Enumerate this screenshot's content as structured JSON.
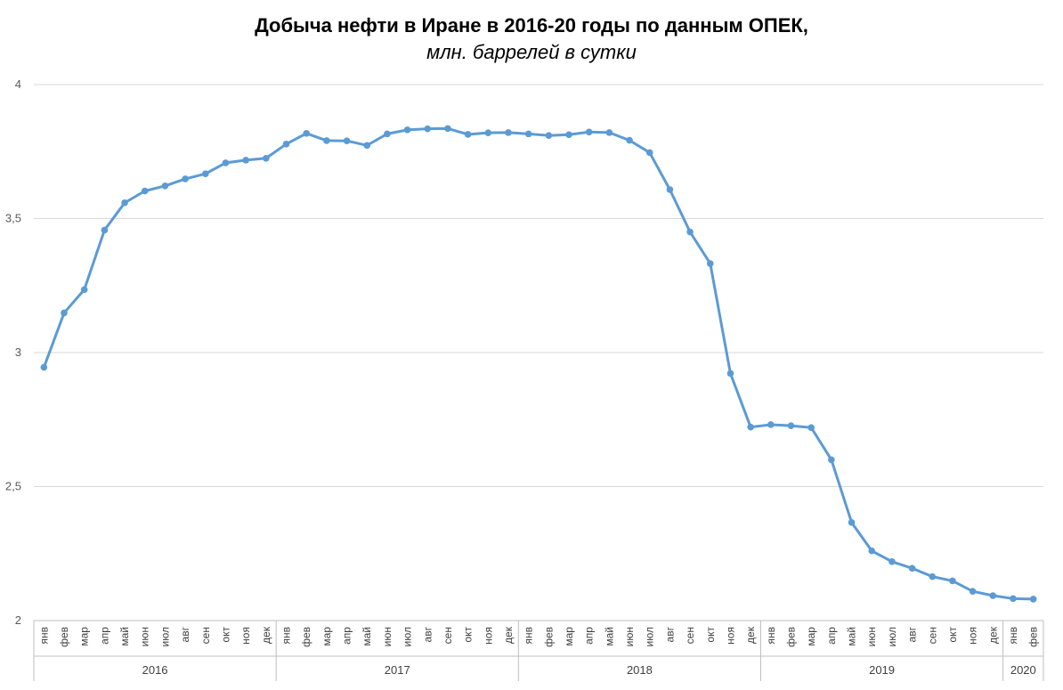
{
  "chart_data": {
    "type": "line",
    "title": "Добыча нефти в Иране в 2016-20 годы по данным ОПЕК,",
    "subtitle": "млн. баррелей в сутки",
    "ylim": [
      2,
      4
    ],
    "yticks": [
      "2",
      "2,5",
      "3",
      "3,5",
      "4"
    ],
    "ytick_values": [
      2,
      2.5,
      3,
      3.5,
      4
    ],
    "grid": true,
    "colors": {
      "line": "#5b9bd5",
      "grid": "#d9d9d9",
      "axis": "#bfbfbf"
    },
    "years": [
      {
        "label": "2016",
        "months": 12
      },
      {
        "label": "2017",
        "months": 12
      },
      {
        "label": "2018",
        "months": 12
      },
      {
        "label": "2019",
        "months": 12
      },
      {
        "label": "2020",
        "months": 2
      }
    ],
    "categories": [
      "янв",
      "фев",
      "мар",
      "апр",
      "май",
      "июн",
      "июл",
      "авг",
      "сен",
      "окт",
      "ноя",
      "дек",
      "янв",
      "фев",
      "мар",
      "апр",
      "май",
      "июн",
      "июл",
      "авг",
      "сен",
      "окт",
      "ноя",
      "дек",
      "янв",
      "фев",
      "мар",
      "апр",
      "май",
      "июн",
      "июл",
      "авг",
      "сен",
      "окт",
      "ноя",
      "дек",
      "янв",
      "фев",
      "мар",
      "апр",
      "май",
      "июн",
      "июл",
      "авг",
      "сен",
      "окт",
      "ноя",
      "дек",
      "янв",
      "фев"
    ],
    "values": [
      2.945,
      3.148,
      3.235,
      3.457,
      3.559,
      3.603,
      3.622,
      3.648,
      3.667,
      3.708,
      3.718,
      3.725,
      3.778,
      3.818,
      3.791,
      3.79,
      3.773,
      3.816,
      3.831,
      3.835,
      3.836,
      3.814,
      3.82,
      3.821,
      3.816,
      3.81,
      3.813,
      3.823,
      3.821,
      3.792,
      3.746,
      3.608,
      3.45,
      3.332,
      2.922,
      2.722,
      2.731,
      2.727,
      2.72,
      2.6,
      2.366,
      2.26,
      2.22,
      2.195,
      2.164,
      2.148,
      2.109,
      2.093,
      2.082,
      2.08
    ]
  }
}
